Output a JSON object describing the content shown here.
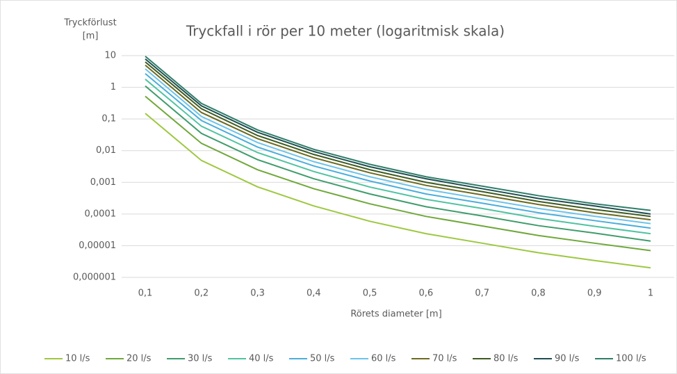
{
  "chart_data": {
    "type": "line",
    "title": "Tryckfall i rör per 10 meter (logaritmisk skala)",
    "ylabel_lines": [
      "Tryckförlust",
      "[m]"
    ],
    "xlabel": "Rörets diameter [m]",
    "categories": [
      "0,1",
      "0,2",
      "0,3",
      "0,4",
      "0,5",
      "0,6",
      "0,7",
      "0,8",
      "0,9",
      "1"
    ],
    "ylim": [
      1e-06,
      10
    ],
    "yscale": "log",
    "yticks": [
      10,
      1,
      {
        "value": 0.1,
        "label": "0,1"
      },
      {
        "value": 0.01,
        "label": "0,01"
      },
      {
        "value": 0.001,
        "label": "0,001"
      },
      {
        "value": 0.0001,
        "label": "0,0001"
      },
      {
        "value": 1e-05,
        "label": "0,00001"
      },
      {
        "value": 1e-06,
        "label": "0,000001"
      }
    ],
    "grid": true,
    "legend": "bottom",
    "series": [
      {
        "name": "10 l/s",
        "color": "#9dc83f",
        "values": [
          0.15,
          0.0049,
          0.00072,
          0.00018,
          5.9e-05,
          2.4e-05,
          1.2e-05,
          6e-06,
          3.4e-06,
          2e-06
        ]
      },
      {
        "name": "20 l/s",
        "color": "#6fa83a",
        "values": [
          0.52,
          0.017,
          0.0025,
          0.00063,
          0.00021,
          8.4e-05,
          4.2e-05,
          2.1e-05,
          1.2e-05,
          7e-06
        ]
      },
      {
        "name": "30 l/s",
        "color": "#3e9c6b",
        "values": [
          1.1,
          0.035,
          0.0052,
          0.0013,
          0.00043,
          0.00017,
          8.7e-05,
          4.3e-05,
          2.5e-05,
          1.4e-05
        ]
      },
      {
        "name": "40 l/s",
        "color": "#4fc3a0",
        "values": [
          1.8,
          0.059,
          0.0087,
          0.0022,
          0.00071,
          0.00029,
          0.00015,
          7.3e-05,
          4.1e-05,
          2.4e-05
        ]
      },
      {
        "name": "50 l/s",
        "color": "#4aaedc",
        "values": [
          2.7,
          0.089,
          0.013,
          0.0033,
          0.0011,
          0.00043,
          0.00022,
          0.00011,
          6.2e-05,
          3.6e-05
        ]
      },
      {
        "name": "60 l/s",
        "color": "#6cc3ea",
        "values": [
          3.8,
          0.12,
          0.018,
          0.0045,
          0.0015,
          0.0006,
          0.0003,
          0.00015,
          8.5e-05,
          5e-05
        ]
      },
      {
        "name": "70 l/s",
        "color": "#6b6a20",
        "values": [
          5,
          0.16,
          0.024,
          0.006,
          0.002,
          0.0008,
          0.0004,
          0.0002,
          0.00011,
          6.6e-05
        ]
      },
      {
        "name": "80 l/s",
        "color": "#3d5a1e",
        "values": [
          6.3,
          0.21,
          0.03,
          0.0076,
          0.0025,
          0.001,
          0.00051,
          0.00025,
          0.00014,
          8.4e-05
        ]
      },
      {
        "name": "90 l/s",
        "color": "#1e4d4f",
        "values": [
          7.8,
          0.26,
          0.038,
          0.0094,
          0.0031,
          0.0013,
          0.00063,
          0.00031,
          0.00018,
          0.0001
        ]
      },
      {
        "name": "100 l/s",
        "color": "#2e7d68",
        "values": [
          9.5,
          0.31,
          0.045,
          0.011,
          0.0037,
          0.0015,
          0.00076,
          0.00038,
          0.00021,
          0.00013
        ]
      }
    ]
  }
}
